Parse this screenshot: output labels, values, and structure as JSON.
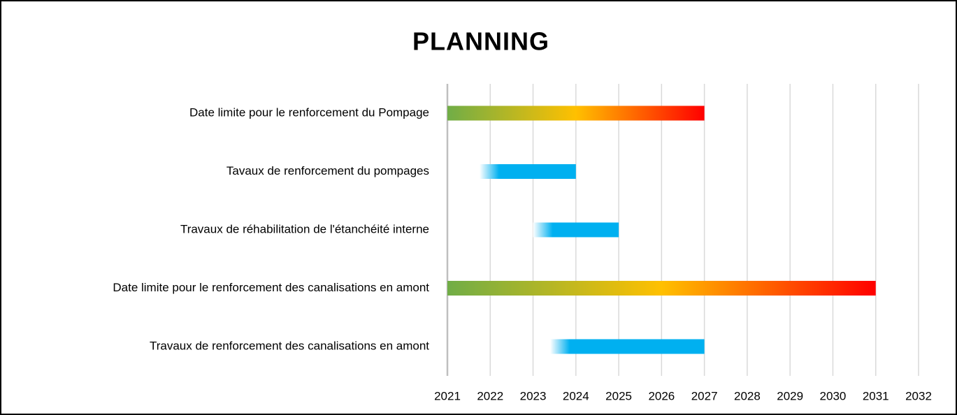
{
  "chart_data": {
    "type": "gantt",
    "title": "PLANNING",
    "categories": [
      "Date limite pour le renforcement du Pompage",
      "Tavaux de renforcement du pompages",
      "Travaux de réhabilitation de l'étanchéité interne",
      "Date limite pour le renforcement des canalisations en amont",
      "Travaux de renforcement des canalisations en amont"
    ],
    "start": [
      2021,
      2021.75,
      2023,
      2021,
      2023.4
    ],
    "end": [
      2027,
      2024,
      2025,
      2031,
      2027
    ],
    "colors": [
      [
        "#70ad47",
        "#ffc000",
        "#ff0000"
      ],
      [
        "#ffffff",
        "#00b0f0"
      ],
      [
        "#ffffff",
        "#00b0f0"
      ],
      [
        "#70ad47",
        "#ffc000",
        "#ff0000"
      ],
      [
        "#ffffff",
        "#00b0f0"
      ]
    ],
    "xlim": [
      2021,
      2032
    ],
    "xticks": [
      2021,
      2022,
      2023,
      2024,
      2025,
      2026,
      2027,
      2028,
      2029,
      2030,
      2031,
      2032
    ],
    "grid": true
  }
}
